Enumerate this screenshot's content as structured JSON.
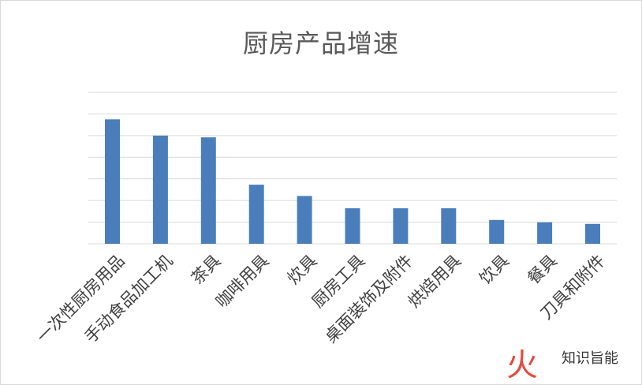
{
  "chart_data": {
    "type": "bar",
    "title": "厨房产品增速",
    "categories": [
      "一次性厨房用品",
      "手动食品加工机",
      "茶具",
      "咖啡用具",
      "炊具",
      "厨房工具",
      "桌面装饰及附件",
      "烘焙用具",
      "饮具",
      "餐具",
      "刀具和附件"
    ],
    "values": [
      5.75,
      5.0,
      4.92,
      2.73,
      2.21,
      1.64,
      1.64,
      1.64,
      1.1,
      0.99,
      0.92
    ],
    "ylim": [
      0,
      7
    ],
    "grid": true,
    "legend": "none",
    "bar_color": "#4a7ebb",
    "grid_color": "#d9d9d9"
  },
  "watermark": {
    "text": "知识旨能",
    "logo_text": "火",
    "logo_color": "#e8483b"
  }
}
